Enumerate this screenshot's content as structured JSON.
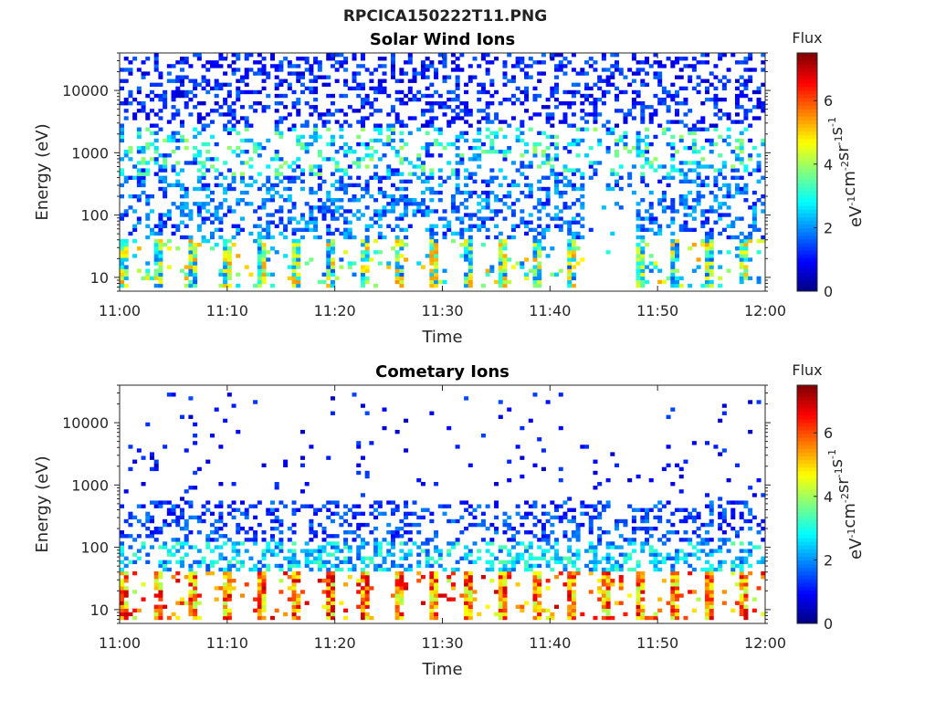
{
  "figure": {
    "title": "RPCICA150222T11.PNG"
  },
  "colormap": "jet",
  "chart_data": [
    {
      "type": "heatmap",
      "title": "Solar Wind Ions",
      "xlabel": "Time",
      "ylabel": "Energy (eV)",
      "x_range": [
        "11:00",
        "12:00"
      ],
      "x_ticks": [
        "11:00",
        "11:10",
        "11:20",
        "11:30",
        "11:40",
        "11:50",
        "12:00"
      ],
      "y_scale": "log",
      "y_range_eV": [
        6,
        40000
      ],
      "y_ticks": [
        "10",
        "100",
        "1000",
        "10000"
      ],
      "colorbar": {
        "title": "Flux",
        "label": "eV-1cm-2sr-1s-1",
        "range": [
          0,
          7.5
        ],
        "ticks": [
          "0",
          "2",
          "4",
          "6"
        ]
      },
      "bands": [
        {
          "energy_eV": [
            7,
            40
          ],
          "flux": [
            1.5,
            5.5
          ],
          "coverage": 0.9,
          "note": "periodic bursts every ~3 min"
        },
        {
          "energy_eV": [
            40,
            400
          ],
          "flux": [
            1.0,
            2.5
          ],
          "coverage": 0.35
        },
        {
          "energy_eV": [
            400,
            2500
          ],
          "flux": [
            1.0,
            4.0
          ],
          "coverage": 0.3
        },
        {
          "energy_eV": [
            2500,
            40000
          ],
          "flux": [
            0.5,
            1.8
          ],
          "coverage": 0.3
        }
      ],
      "gap": {
        "time": [
          "11:43",
          "11:48"
        ],
        "max_energy_eV": 250
      }
    },
    {
      "type": "heatmap",
      "title": "Cometary Ions",
      "xlabel": "Time",
      "ylabel": "Energy (eV)",
      "x_range": [
        "11:00",
        "12:00"
      ],
      "x_ticks": [
        "11:00",
        "11:10",
        "11:20",
        "11:30",
        "11:40",
        "11:50",
        "12:00"
      ],
      "y_scale": "log",
      "y_range_eV": [
        6,
        40000
      ],
      "y_ticks": [
        "10",
        "100",
        "1000",
        "10000"
      ],
      "colorbar": {
        "title": "Flux",
        "label": "eV-1cm-2sr-1s-1",
        "range": [
          0,
          7.5
        ],
        "ticks": [
          "0",
          "2",
          "4",
          "6"
        ]
      },
      "bands": [
        {
          "energy_eV": [
            7,
            40
          ],
          "flux": [
            4.0,
            7.0
          ],
          "coverage": 0.95,
          "note": "periodic bursts every ~3 min"
        },
        {
          "energy_eV": [
            40,
            120
          ],
          "flux": [
            1.5,
            3.5
          ],
          "coverage": 0.4
        },
        {
          "energy_eV": [
            120,
            600
          ],
          "flux": [
            0.8,
            2.0
          ],
          "coverage": 0.3
        },
        {
          "energy_eV": [
            600,
            30000
          ],
          "flux": [
            0.5,
            1.5
          ],
          "coverage": 0.03
        }
      ]
    }
  ]
}
